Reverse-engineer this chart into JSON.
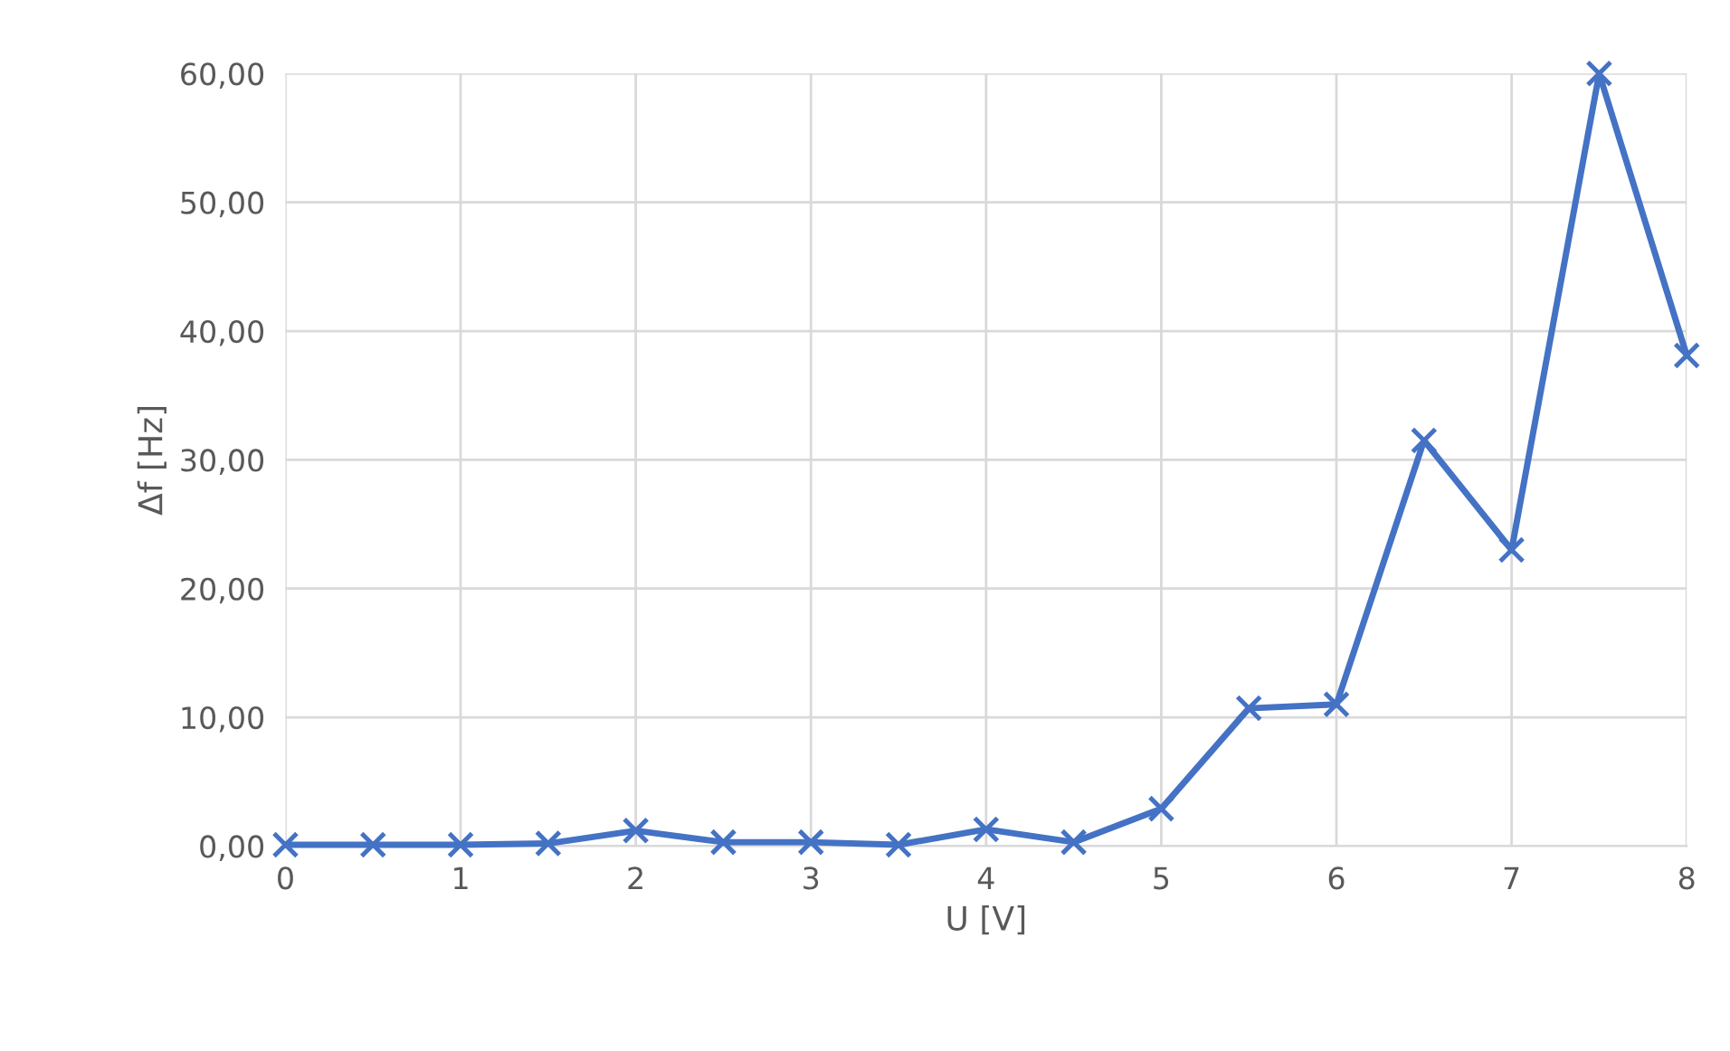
{
  "chart_data": {
    "type": "line",
    "xlabel": "U [V]",
    "ylabel": "Δf [Hz]",
    "x": [
      0,
      0.5,
      1,
      1.5,
      2,
      2.5,
      3,
      3.5,
      4,
      4.5,
      5,
      5.5,
      6,
      6.5,
      7,
      7.5,
      8
    ],
    "series": [
      {
        "color": "#4472c4",
        "values": [
          0.1,
          0.1,
          0.1,
          0.2,
          1.2,
          0.3,
          0.3,
          0.1,
          1.3,
          0.3,
          2.9,
          10.7,
          11.0,
          31.5,
          23.0,
          60.0,
          38.1
        ]
      }
    ],
    "xlim": [
      0,
      8
    ],
    "xticks": [
      0,
      1,
      2,
      3,
      4,
      5,
      6,
      7,
      8
    ],
    "ylim": [
      0,
      60
    ],
    "yticks": [
      {
        "value": 0,
        "label": "0,00"
      },
      {
        "value": 10,
        "label": "10,00"
      },
      {
        "value": 20,
        "label": "20,00"
      },
      {
        "value": 30,
        "label": "30,00"
      },
      {
        "value": 40,
        "label": "40,00"
      },
      {
        "value": 50,
        "label": "50,00"
      },
      {
        "value": 60,
        "label": "60,00"
      }
    ],
    "grid": true,
    "marker": "cross",
    "line_style": "solid"
  }
}
